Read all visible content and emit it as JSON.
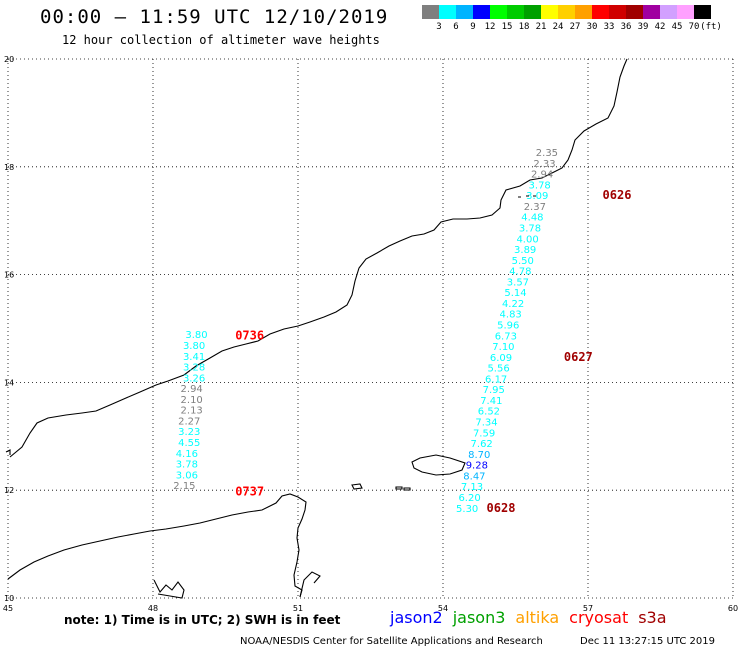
{
  "header": {
    "title": "00:00 – 11:59 UTC 12/10/2019",
    "subtitle": "12 hour collection of altimeter wave heights"
  },
  "colorbar": {
    "colors": [
      "#7f7f7f",
      "#00ffff",
      "#00b4ff",
      "#0000ff",
      "#00ff00",
      "#00cc00",
      "#00a000",
      "#ffff00",
      "#ffd000",
      "#ffa000",
      "#ff0000",
      "#d00000",
      "#a00000",
      "#a000a0",
      "#d2a0ff",
      "#ffa0ff",
      "#000000"
    ],
    "labels": [
      "3",
      "6",
      "9",
      "12",
      "15",
      "18",
      "21",
      "24",
      "27",
      "30",
      "33",
      "36",
      "39",
      "42",
      "45",
      "70",
      "(ft)"
    ]
  },
  "axes": {
    "lon_labels": [
      "45",
      "48",
      "51",
      "54",
      "57",
      "60"
    ],
    "lat_labels": [
      "20",
      "18",
      "16",
      "14",
      "12",
      "10"
    ]
  },
  "notes": {
    "text": "note: 1) Time is in UTC; 2) SWH is in feet"
  },
  "legend": [
    {
      "label": "jason2",
      "color": "#0000ff"
    },
    {
      "label": "jason3",
      "color": "#00a000"
    },
    {
      "label": "altika",
      "color": "#ffa000"
    },
    {
      "label": "cryosat",
      "color": "#ff0000"
    },
    {
      "label": "s3a",
      "color": "#a00000"
    }
  ],
  "footer": {
    "credit": "NOAA/NESDIS Center for Satellite Applications and Research",
    "timestamp": "Dec 11 13:27:15 UTC 2019"
  },
  "tracks": [
    {
      "time_label": "0736",
      "time_color": "#ff0000",
      "time_lat": 14.8,
      "time_lon": 50.0,
      "obs": [
        {
          "v": "3.80",
          "lat": 14.82,
          "lon": 48.9,
          "c": "#00ffff"
        },
        {
          "v": "3.80",
          "lat": 14.62,
          "lon": 48.85,
          "c": "#00ffff"
        },
        {
          "v": "3.41",
          "lat": 14.42,
          "lon": 48.85,
          "c": "#00ffff"
        },
        {
          "v": "3.28",
          "lat": 14.22,
          "lon": 48.85,
          "c": "#00ffff"
        },
        {
          "v": "3.26",
          "lat": 14.02,
          "lon": 48.85,
          "c": "#00ffff"
        },
        {
          "v": "2.94",
          "lat": 13.82,
          "lon": 48.8,
          "c": "#7f7f7f"
        },
        {
          "v": "2.10",
          "lat": 13.62,
          "lon": 48.8,
          "c": "#7f7f7f"
        },
        {
          "v": "2.13",
          "lat": 13.42,
          "lon": 48.8,
          "c": "#7f7f7f"
        },
        {
          "v": "2.27",
          "lat": 13.22,
          "lon": 48.75,
          "c": "#7f7f7f"
        },
        {
          "v": "3.23",
          "lat": 13.02,
          "lon": 48.75,
          "c": "#00ffff"
        },
        {
          "v": "4.55",
          "lat": 12.82,
          "lon": 48.75,
          "c": "#00ffff"
        },
        {
          "v": "4.16",
          "lat": 12.62,
          "lon": 48.7,
          "c": "#00ffff"
        },
        {
          "v": "3.78",
          "lat": 12.42,
          "lon": 48.7,
          "c": "#00ffff"
        },
        {
          "v": "3.06",
          "lat": 12.22,
          "lon": 48.7,
          "c": "#00ffff"
        },
        {
          "v": "2.15",
          "lat": 12.02,
          "lon": 48.65,
          "c": "#7f7f7f"
        }
      ]
    },
    {
      "time_label": "0737",
      "time_color": "#ff0000",
      "time_lat": 11.9,
      "time_lon": 50.0,
      "obs": []
    },
    {
      "time_label": "0626",
      "time_color": "#a00000",
      "time_lat": 17.4,
      "time_lon": 57.6,
      "obs": [
        {
          "v": "2.35",
          "lat": 18.2,
          "lon": 56.15,
          "c": "#7f7f7f"
        },
        {
          "v": "2.33",
          "lat": 18.0,
          "lon": 56.1,
          "c": "#7f7f7f"
        },
        {
          "v": "2.94",
          "lat": 17.8,
          "lon": 56.05,
          "c": "#7f7f7f"
        },
        {
          "v": "3.78",
          "lat": 17.6,
          "lon": 56.0,
          "c": "#00ffff"
        },
        {
          "v": "3.09",
          "lat": 17.4,
          "lon": 55.95,
          "c": "#00ffff"
        },
        {
          "v": "2.37",
          "lat": 17.2,
          "lon": 55.9,
          "c": "#7f7f7f"
        },
        {
          "v": "4.48",
          "lat": 17.0,
          "lon": 55.85,
          "c": "#00ffff"
        },
        {
          "v": "3.78",
          "lat": 16.8,
          "lon": 55.8,
          "c": "#00ffff"
        },
        {
          "v": "4.00",
          "lat": 16.6,
          "lon": 55.75,
          "c": "#00ffff"
        },
        {
          "v": "3.89",
          "lat": 16.4,
          "lon": 55.7,
          "c": "#00ffff"
        },
        {
          "v": "5.50",
          "lat": 16.2,
          "lon": 55.65,
          "c": "#00ffff"
        },
        {
          "v": "4.78",
          "lat": 16.0,
          "lon": 55.6,
          "c": "#00ffff"
        },
        {
          "v": "3.57",
          "lat": 15.8,
          "lon": 55.55,
          "c": "#00ffff"
        },
        {
          "v": "5.14",
          "lat": 15.6,
          "lon": 55.5,
          "c": "#00ffff"
        },
        {
          "v": "4.22",
          "lat": 15.4,
          "lon": 55.45,
          "c": "#00ffff"
        },
        {
          "v": "4.83",
          "lat": 15.2,
          "lon": 55.4,
          "c": "#00ffff"
        },
        {
          "v": "5.96",
          "lat": 15.0,
          "lon": 55.35,
          "c": "#00ffff"
        },
        {
          "v": "6.73",
          "lat": 14.8,
          "lon": 55.3,
          "c": "#00ffff"
        },
        {
          "v": "7.10",
          "lat": 14.6,
          "lon": 55.25,
          "c": "#00ffff"
        },
        {
          "v": "6.09",
          "lat": 14.4,
          "lon": 55.2,
          "c": "#00ffff"
        }
      ]
    },
    {
      "time_label": "0627",
      "time_color": "#a00000",
      "time_lat": 14.4,
      "time_lon": 56.8,
      "obs": [
        {
          "v": "5.56",
          "lat": 14.2,
          "lon": 55.15,
          "c": "#00ffff"
        },
        {
          "v": "6.17",
          "lat": 14.0,
          "lon": 55.1,
          "c": "#00ffff"
        },
        {
          "v": "7.95",
          "lat": 13.8,
          "lon": 55.05,
          "c": "#00ffff"
        },
        {
          "v": "7.41",
          "lat": 13.6,
          "lon": 55.0,
          "c": "#00ffff"
        },
        {
          "v": "6.52",
          "lat": 13.4,
          "lon": 54.95,
          "c": "#00ffff"
        },
        {
          "v": "7.34",
          "lat": 13.2,
          "lon": 54.9,
          "c": "#00ffff"
        },
        {
          "v": "7.59",
          "lat": 13.0,
          "lon": 54.85,
          "c": "#00ffff"
        },
        {
          "v": "7.62",
          "lat": 12.8,
          "lon": 54.8,
          "c": "#00ffff"
        },
        {
          "v": "8.70",
          "lat": 12.6,
          "lon": 54.75,
          "c": "#00b4ff"
        },
        {
          "v": "9.28",
          "lat": 12.4,
          "lon": 54.7,
          "c": "#0000ff"
        },
        {
          "v": "8.47",
          "lat": 12.2,
          "lon": 54.65,
          "c": "#00b4ff"
        },
        {
          "v": "7.13",
          "lat": 12.0,
          "lon": 54.6,
          "c": "#00ffff"
        },
        {
          "v": "6.20",
          "lat": 11.8,
          "lon": 54.55,
          "c": "#00ffff"
        },
        {
          "v": "5.30",
          "lat": 11.6,
          "lon": 54.5,
          "c": "#00ffff"
        }
      ]
    },
    {
      "time_label": "0628",
      "time_color": "#a00000",
      "time_lat": 11.6,
      "time_lon": 55.2,
      "obs": []
    }
  ]
}
